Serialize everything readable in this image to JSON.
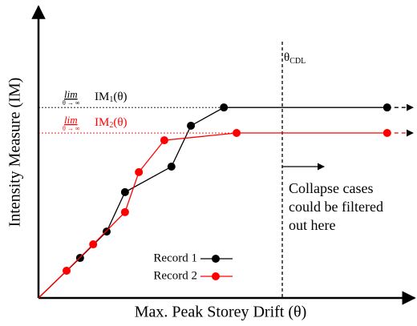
{
  "chart_data": {
    "type": "line",
    "x_label": "Max. Peak Storey Drift (θ)",
    "y_label": "Intensity Measure (IM)",
    "xlim": [
      0,
      100
    ],
    "ylim": [
      0,
      100
    ],
    "series": [
      {
        "name": "Record 1",
        "color": "#000000",
        "x": [
          11.1,
          18.2,
          23.1,
          35.5,
          40.7,
          49.5,
          93.1
        ],
        "values": [
          13.8,
          22.9,
          36.5,
          45.3,
          59.4,
          65.7,
          65.7
        ]
      },
      {
        "name": "Record 2",
        "color": "#ff0000",
        "x": [
          7.5,
          14.6,
          23.1,
          26.8,
          33.6,
          52.9,
          93.1
        ],
        "values": [
          9.4,
          18.5,
          29.6,
          43.4,
          54.4,
          56.9,
          56.9
        ]
      }
    ],
    "limit_labels": [
      {
        "lim": "lim",
        "under": "θ → ∞",
        "name": "IM",
        "index": "1",
        "arg": "(θ)"
      },
      {
        "lim": "lim",
        "under": "θ → ∞",
        "name": "IM",
        "index": "2",
        "arg": "(θ)"
      }
    ],
    "threshold": {
      "x": 65.1,
      "symbol": "θ",
      "subscript": "CDL"
    },
    "note": [
      "Collapse cases",
      "could be filtered",
      "out here"
    ]
  }
}
